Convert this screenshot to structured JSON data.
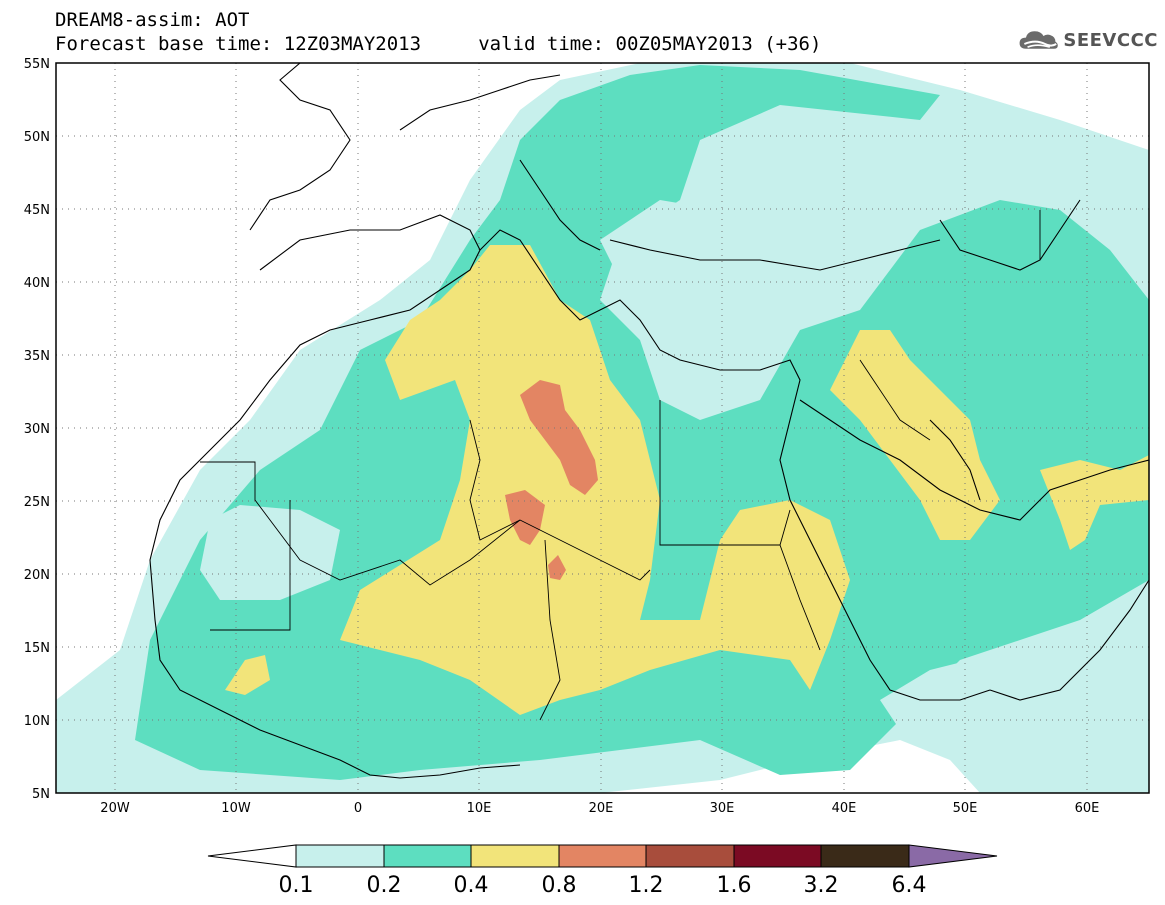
{
  "header": {
    "line1": "DREAM8-assim: AOT",
    "line2": "Forecast base time: 12Z03MAY2013     valid time: 00Z05MAY2013 (+36)"
  },
  "logo": {
    "text": "SEEVCCC",
    "icon": "cloud-icon",
    "color": "#555555"
  },
  "map": {
    "lat_labels": [
      "55N",
      "50N",
      "45N",
      "40N",
      "35N",
      "30N",
      "25N",
      "20N",
      "15N",
      "10N",
      "5N"
    ],
    "lon_labels": [
      "20W",
      "10W",
      "0",
      "10E",
      "20E",
      "30E",
      "40E",
      "50E",
      "60E"
    ],
    "colors": {
      "c01": "#c7f0ec",
      "c02": "#5ddec0",
      "c04": "#f2e47a",
      "c08": "#e38563"
    }
  },
  "colorbar": {
    "labels": [
      "0.1",
      "0.2",
      "0.4",
      "0.8",
      "1.2",
      "1.6",
      "3.2",
      "6.4"
    ],
    "colors": [
      "#c7f0ec",
      "#5ddec0",
      "#f2e47a",
      "#e38563",
      "#a84d3c",
      "#7b0a23",
      "#3a2a18",
      "#8a6aa6"
    ]
  }
}
